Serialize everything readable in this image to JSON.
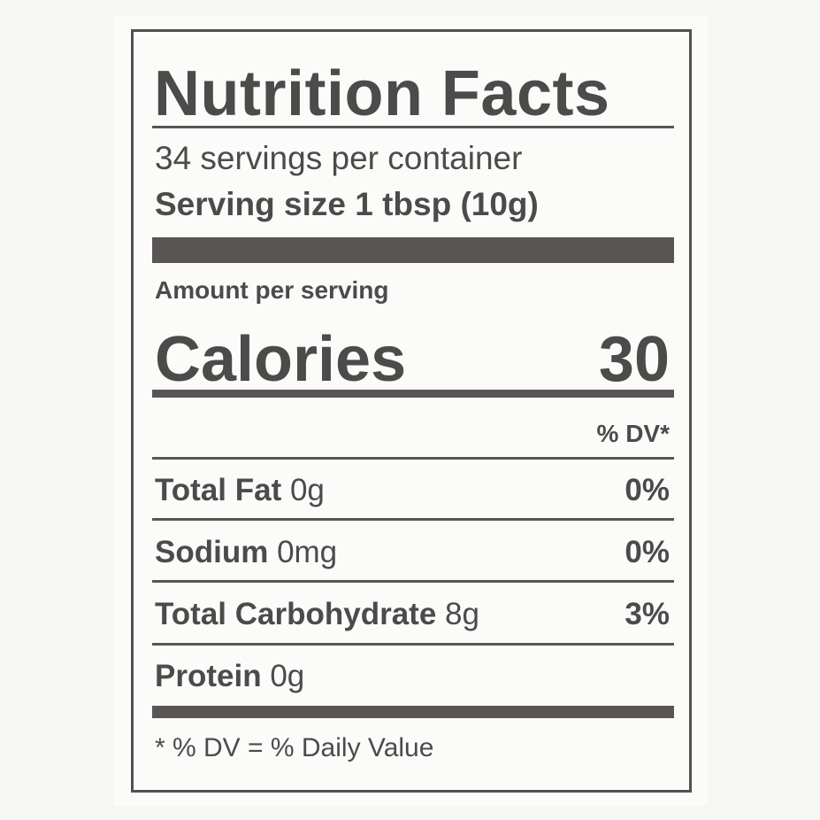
{
  "label": {
    "title": "Nutrition Facts",
    "servings_per_container": "34 servings per container",
    "serving_size": "Serving size 1 tbsp (10g)",
    "amount_per_serving": "Amount per serving",
    "calories_label": "Calories",
    "calories_value": "30",
    "dv_header": "% DV*",
    "nutrients": [
      {
        "name": "Total Fat",
        "amount": "0g",
        "dv": "0%"
      },
      {
        "name": "Sodium",
        "amount": "0mg",
        "dv": "0%"
      },
      {
        "name": "Total Carbohydrate",
        "amount": "8g",
        "dv": "3%"
      },
      {
        "name": "Protein",
        "amount": "0g",
        "dv": ""
      }
    ],
    "footnote": "* % DV = % Daily Value"
  },
  "colors": {
    "ink": "#4d4a4a",
    "background": "#fbfbfa"
  }
}
